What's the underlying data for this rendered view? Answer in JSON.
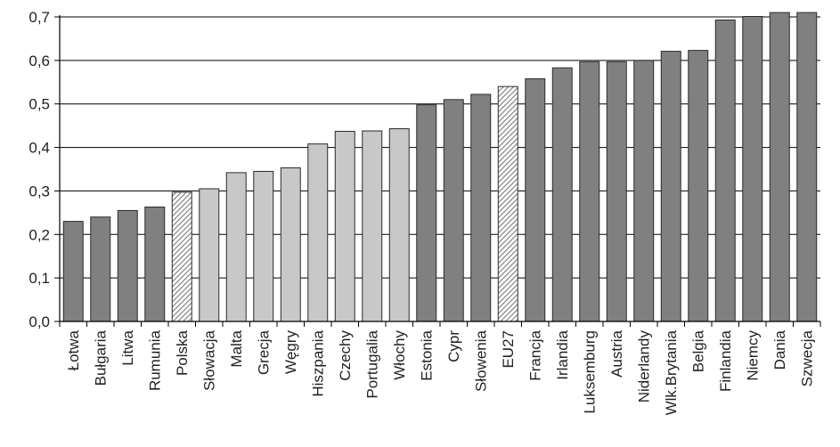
{
  "chart_data": {
    "type": "bar",
    "title": "",
    "xlabel": "",
    "ylabel": "",
    "ylim": [
      0,
      0.7
    ],
    "yticks": [
      "0,0",
      "0,1",
      "0,2",
      "0,3",
      "0,4",
      "0,5",
      "0,6",
      "0,7"
    ],
    "grid": true,
    "legend": "none",
    "categories": [
      "Łotwa",
      "Bułgaria",
      "Litwa",
      "Rumunia",
      "Polska",
      "Słowacja",
      "Malta",
      "Grecja",
      "Węgry",
      "Hiszpania",
      "Czechy",
      "Portugalia",
      "Włochy",
      "Estonia",
      "Cypr",
      "Słowenia",
      "EU27",
      "Francja",
      "Irlandia",
      "Luksemburg",
      "Austria",
      "Niderlandy",
      "Wlk.Brytania",
      "Belgia",
      "Finlandia",
      "Niemcy",
      "Dania",
      "Szwecja"
    ],
    "values": [
      0.23,
      0.24,
      0.255,
      0.263,
      0.297,
      0.305,
      0.342,
      0.345,
      0.353,
      0.408,
      0.437,
      0.438,
      0.443,
      0.498,
      0.51,
      0.522,
      0.54,
      0.558,
      0.583,
      0.597,
      0.597,
      0.6,
      0.621,
      0.623,
      0.693,
      0.701,
      0.71,
      0.71
    ],
    "styles": [
      "dark",
      "dark",
      "dark",
      "dark",
      "hatched",
      "light",
      "light",
      "light",
      "light",
      "light",
      "light",
      "light",
      "light",
      "dark",
      "dark",
      "dark",
      "hatched",
      "dark",
      "dark",
      "dark",
      "dark",
      "dark",
      "dark",
      "dark",
      "dark",
      "dark",
      "dark",
      "dark"
    ],
    "colors": {
      "dark": "#808080",
      "light": "#c8c8c8",
      "hatch_bg": "#ffffff",
      "hatch_line": "#7a7a7a",
      "outline": "#2a2a2a",
      "grid": "#000000"
    }
  }
}
